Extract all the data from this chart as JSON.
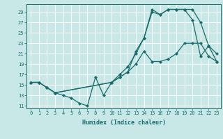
{
  "background_color": "#c8e8e8",
  "grid_color": "#ffffff",
  "line_color": "#1a6b6b",
  "xlabel": "Humidex (Indice chaleur)",
  "xlim": [
    -0.5,
    23.5
  ],
  "ylim": [
    10.5,
    30.5
  ],
  "xticks": [
    0,
    1,
    2,
    3,
    4,
    5,
    6,
    7,
    8,
    9,
    10,
    11,
    12,
    13,
    14,
    15,
    16,
    17,
    18,
    19,
    20,
    21,
    22,
    23
  ],
  "yticks": [
    11,
    13,
    15,
    17,
    19,
    21,
    23,
    25,
    27,
    29
  ],
  "curve1_x": [
    0,
    1,
    2,
    3,
    4,
    5,
    6,
    7,
    8,
    9,
    10,
    11,
    12,
    13,
    14,
    15,
    16,
    17,
    18,
    19,
    20,
    21,
    22,
    23
  ],
  "curve1_y": [
    15.5,
    15.5,
    14.5,
    13.5,
    13.0,
    12.5,
    11.5,
    11.0,
    16.5,
    13.0,
    15.5,
    16.5,
    17.5,
    19.0,
    21.5,
    19.5,
    19.5,
    20.0,
    21.0,
    23.0,
    23.0,
    23.0,
    20.5,
    19.5
  ],
  "curve2_x": [
    0,
    1,
    2,
    3,
    10,
    11,
    12,
    13,
    14,
    15,
    16,
    17,
    18,
    19,
    20,
    21,
    22,
    23
  ],
  "curve2_y": [
    15.5,
    15.5,
    14.5,
    13.5,
    15.5,
    17.0,
    18.5,
    21.0,
    24.0,
    29.0,
    28.5,
    29.5,
    29.5,
    29.5,
    29.5,
    27.0,
    22.5,
    21.0
  ],
  "curve3_x": [
    0,
    1,
    2,
    3,
    10,
    11,
    12,
    13,
    14,
    15,
    16,
    17,
    18,
    19,
    20,
    21,
    22,
    23
  ],
  "curve3_y": [
    15.5,
    15.5,
    14.5,
    13.5,
    15.5,
    16.5,
    17.5,
    21.5,
    24.0,
    29.5,
    28.5,
    29.5,
    29.5,
    29.5,
    27.5,
    20.5,
    22.5,
    19.5
  ],
  "title_fontsize": 6,
  "tick_fontsize": 5,
  "xlabel_fontsize": 6
}
